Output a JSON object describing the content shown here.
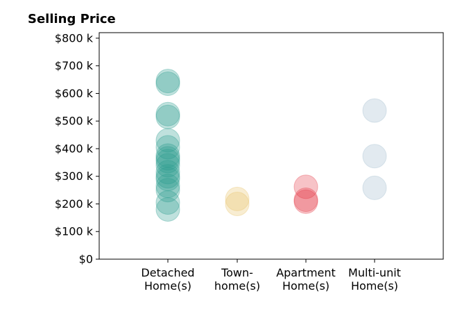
{
  "chart_data": {
    "type": "scatter",
    "title": "Selling Price",
    "xlabel": "",
    "ylabel": "",
    "categories": [
      [
        "Detached",
        "Home(s)"
      ],
      [
        "Town-",
        "home(s)"
      ],
      [
        "Apartment",
        "Home(s)"
      ],
      [
        "Multi-unit",
        "Home(s)"
      ]
    ],
    "ylim": [
      0,
      820000
    ],
    "yticks": [
      0,
      100000,
      200000,
      300000,
      400000,
      500000,
      600000,
      700000,
      800000
    ],
    "ytick_labels": [
      "$0",
      "$100 k",
      "$200 k",
      "$300 k",
      "$400 k",
      "$500 k",
      "$600 k",
      "$700 k",
      "$800 k"
    ],
    "grid": false,
    "series": [
      {
        "category": 0,
        "color": "#2a9d8f",
        "values": [
          645000,
          635000,
          525000,
          515000,
          430000,
          405000,
          375000,
          365000,
          355000,
          340000,
          315000,
          300000,
          290000,
          265000,
          250000,
          205000,
          180000
        ]
      },
      {
        "category": 1,
        "color": "#e9c46a",
        "values": [
          218000,
          200000
        ]
      },
      {
        "category": 2,
        "color": "#e63946",
        "values": [
          262000,
          215000,
          208000
        ]
      },
      {
        "category": 3,
        "color": "#9fbacc",
        "values": [
          538000,
          373000,
          258000
        ]
      }
    ]
  }
}
